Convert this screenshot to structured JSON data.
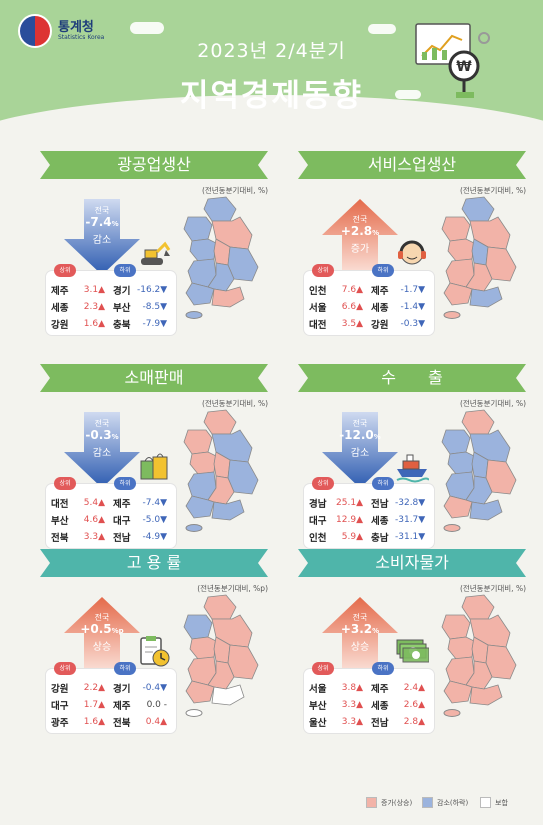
{
  "header": {
    "org_name": "통계청",
    "org_sub": "Statistics Korea",
    "subtitle": "2023년 2/4분기",
    "title": "지역경제동향"
  },
  "colors": {
    "increase": "#f2b3a8",
    "decrease": "#9bb3dd",
    "flat": "#ffffff",
    "green": "#7dbb5f",
    "teal": "#4fb5aa"
  },
  "panels": [
    {
      "title": "광공업생산",
      "unit": "(전년동분기대비, %)",
      "national_label": "전국",
      "national_value": "-7.4",
      "national_unit": "%",
      "direction": "감소",
      "dir": "down",
      "icon": "excavator-icon",
      "up_tag": "상위",
      "down_tag": "하위",
      "rows": [
        [
          "제주",
          "3.1▲",
          "경기",
          "-16.2▼"
        ],
        [
          "세종",
          "2.3▲",
          "부산",
          "-8.5▼"
        ],
        [
          "강원",
          "1.6▲",
          "충북",
          "-7.9▼"
        ]
      ]
    },
    {
      "title": "서비스업생산",
      "unit": "(전년동분기대비, %)",
      "national_label": "전국",
      "national_value": "+2.8",
      "national_unit": "%",
      "direction": "증가",
      "dir": "up",
      "icon": "headset-icon",
      "up_tag": "상위",
      "down_tag": "하위",
      "rows": [
        [
          "인천",
          "7.6▲",
          "제주",
          "-1.7▼"
        ],
        [
          "서울",
          "6.6▲",
          "세종",
          "-1.4▼"
        ],
        [
          "대전",
          "3.5▲",
          "강원",
          "-0.3▼"
        ]
      ]
    },
    {
      "title": "소매판매",
      "unit": "(전년동분기대비, %)",
      "national_label": "전국",
      "national_value": "-0.3",
      "national_unit": "%",
      "direction": "감소",
      "dir": "down",
      "icon": "shopping-bag-icon",
      "up_tag": "상위",
      "down_tag": "하위",
      "rows": [
        [
          "대전",
          "5.4▲",
          "제주",
          "-7.4▼"
        ],
        [
          "부산",
          "4.6▲",
          "대구",
          "-5.0▼"
        ],
        [
          "전북",
          "3.3▲",
          "전남",
          "-4.9▼"
        ]
      ]
    },
    {
      "title": "수　　출",
      "unit": "(전년동분기대비, %)",
      "national_label": "전국",
      "national_value": "-12.0",
      "national_unit": "%",
      "direction": "감소",
      "dir": "down",
      "icon": "ship-icon",
      "up_tag": "상위",
      "down_tag": "하위",
      "rows": [
        [
          "경남",
          "25.1▲",
          "전남",
          "-32.8▼"
        ],
        [
          "대구",
          "12.9▲",
          "세종",
          "-31.7▼"
        ],
        [
          "인천",
          "5.9▲",
          "충남",
          "-31.1▼"
        ]
      ]
    },
    {
      "title": "고 용 률",
      "unit": "(전년동분기대비, %p)",
      "national_label": "전국",
      "national_value": "+0.5",
      "national_unit": "%p",
      "direction": "상승",
      "dir": "up",
      "icon": "clipboard-clock-icon",
      "up_tag": "상위",
      "down_tag": "하위",
      "rows": [
        [
          "강원",
          "2.2▲",
          "경기",
          "-0.4▼"
        ],
        [
          "대구",
          "1.7▲",
          "제주",
          "0.0 -"
        ],
        [
          "광주",
          "1.6▲",
          "전북",
          "0.4▲"
        ]
      ]
    },
    {
      "title": "소비자물가",
      "unit": "(전년동분기대비, %)",
      "national_label": "전국",
      "national_value": "+3.2",
      "national_unit": "%",
      "direction": "상승",
      "dir": "up",
      "icon": "money-icon",
      "up_tag": "상위",
      "down_tag": "하위",
      "rows": [
        [
          "서울",
          "3.8▲",
          "제주",
          "2.4▲"
        ],
        [
          "부산",
          "3.3▲",
          "세종",
          "2.6▲"
        ],
        [
          "울산",
          "3.3▲",
          "전남",
          "2.8▲"
        ]
      ]
    }
  ],
  "legend": {
    "increase": "증가(상승)",
    "decrease": "감소(하락)",
    "flat": "보합"
  }
}
